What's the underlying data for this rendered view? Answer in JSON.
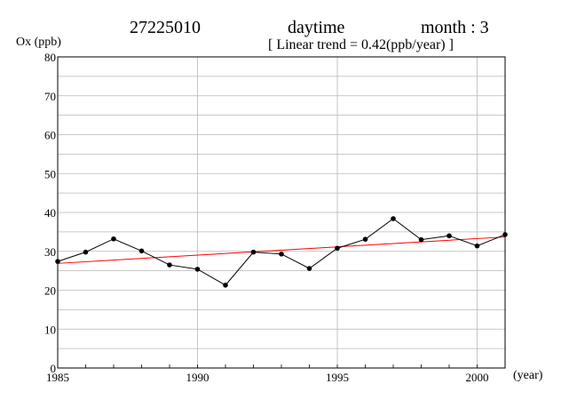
{
  "header": {
    "station_id": "27225010",
    "period": "daytime",
    "month_label": "month : 3",
    "trend_label": "[ Linear trend = 0.42(ppb/year) ]"
  },
  "chart_data": {
    "type": "line",
    "title": "27225010",
    "ylabel": "Ox (ppb)",
    "xlabel": "(year)",
    "xlim": [
      1985,
      2001
    ],
    "ylim": [
      0,
      80
    ],
    "xticks": [
      1985,
      1990,
      1995,
      2000
    ],
    "yticks": [
      0,
      10,
      20,
      30,
      40,
      50,
      60,
      70,
      80
    ],
    "grid": true,
    "x": [
      1985,
      1986,
      1987,
      1988,
      1989,
      1990,
      1991,
      1992,
      1993,
      1994,
      1995,
      1996,
      1997,
      1998,
      1999,
      2000,
      2001
    ],
    "series": [
      {
        "values": [
          27.4,
          29.8,
          33.2,
          30.1,
          26.5,
          25.4,
          21.3,
          29.8,
          29.3,
          25.6,
          30.8,
          33.1,
          38.4,
          33.0,
          34.0,
          31.4,
          34.3
        ],
        "color": "#000000"
      }
    ],
    "trend": {
      "start": [
        1985,
        26.9
      ],
      "end": [
        2001,
        33.7
      ],
      "slope": 0.42,
      "color": "#ff0000"
    }
  }
}
